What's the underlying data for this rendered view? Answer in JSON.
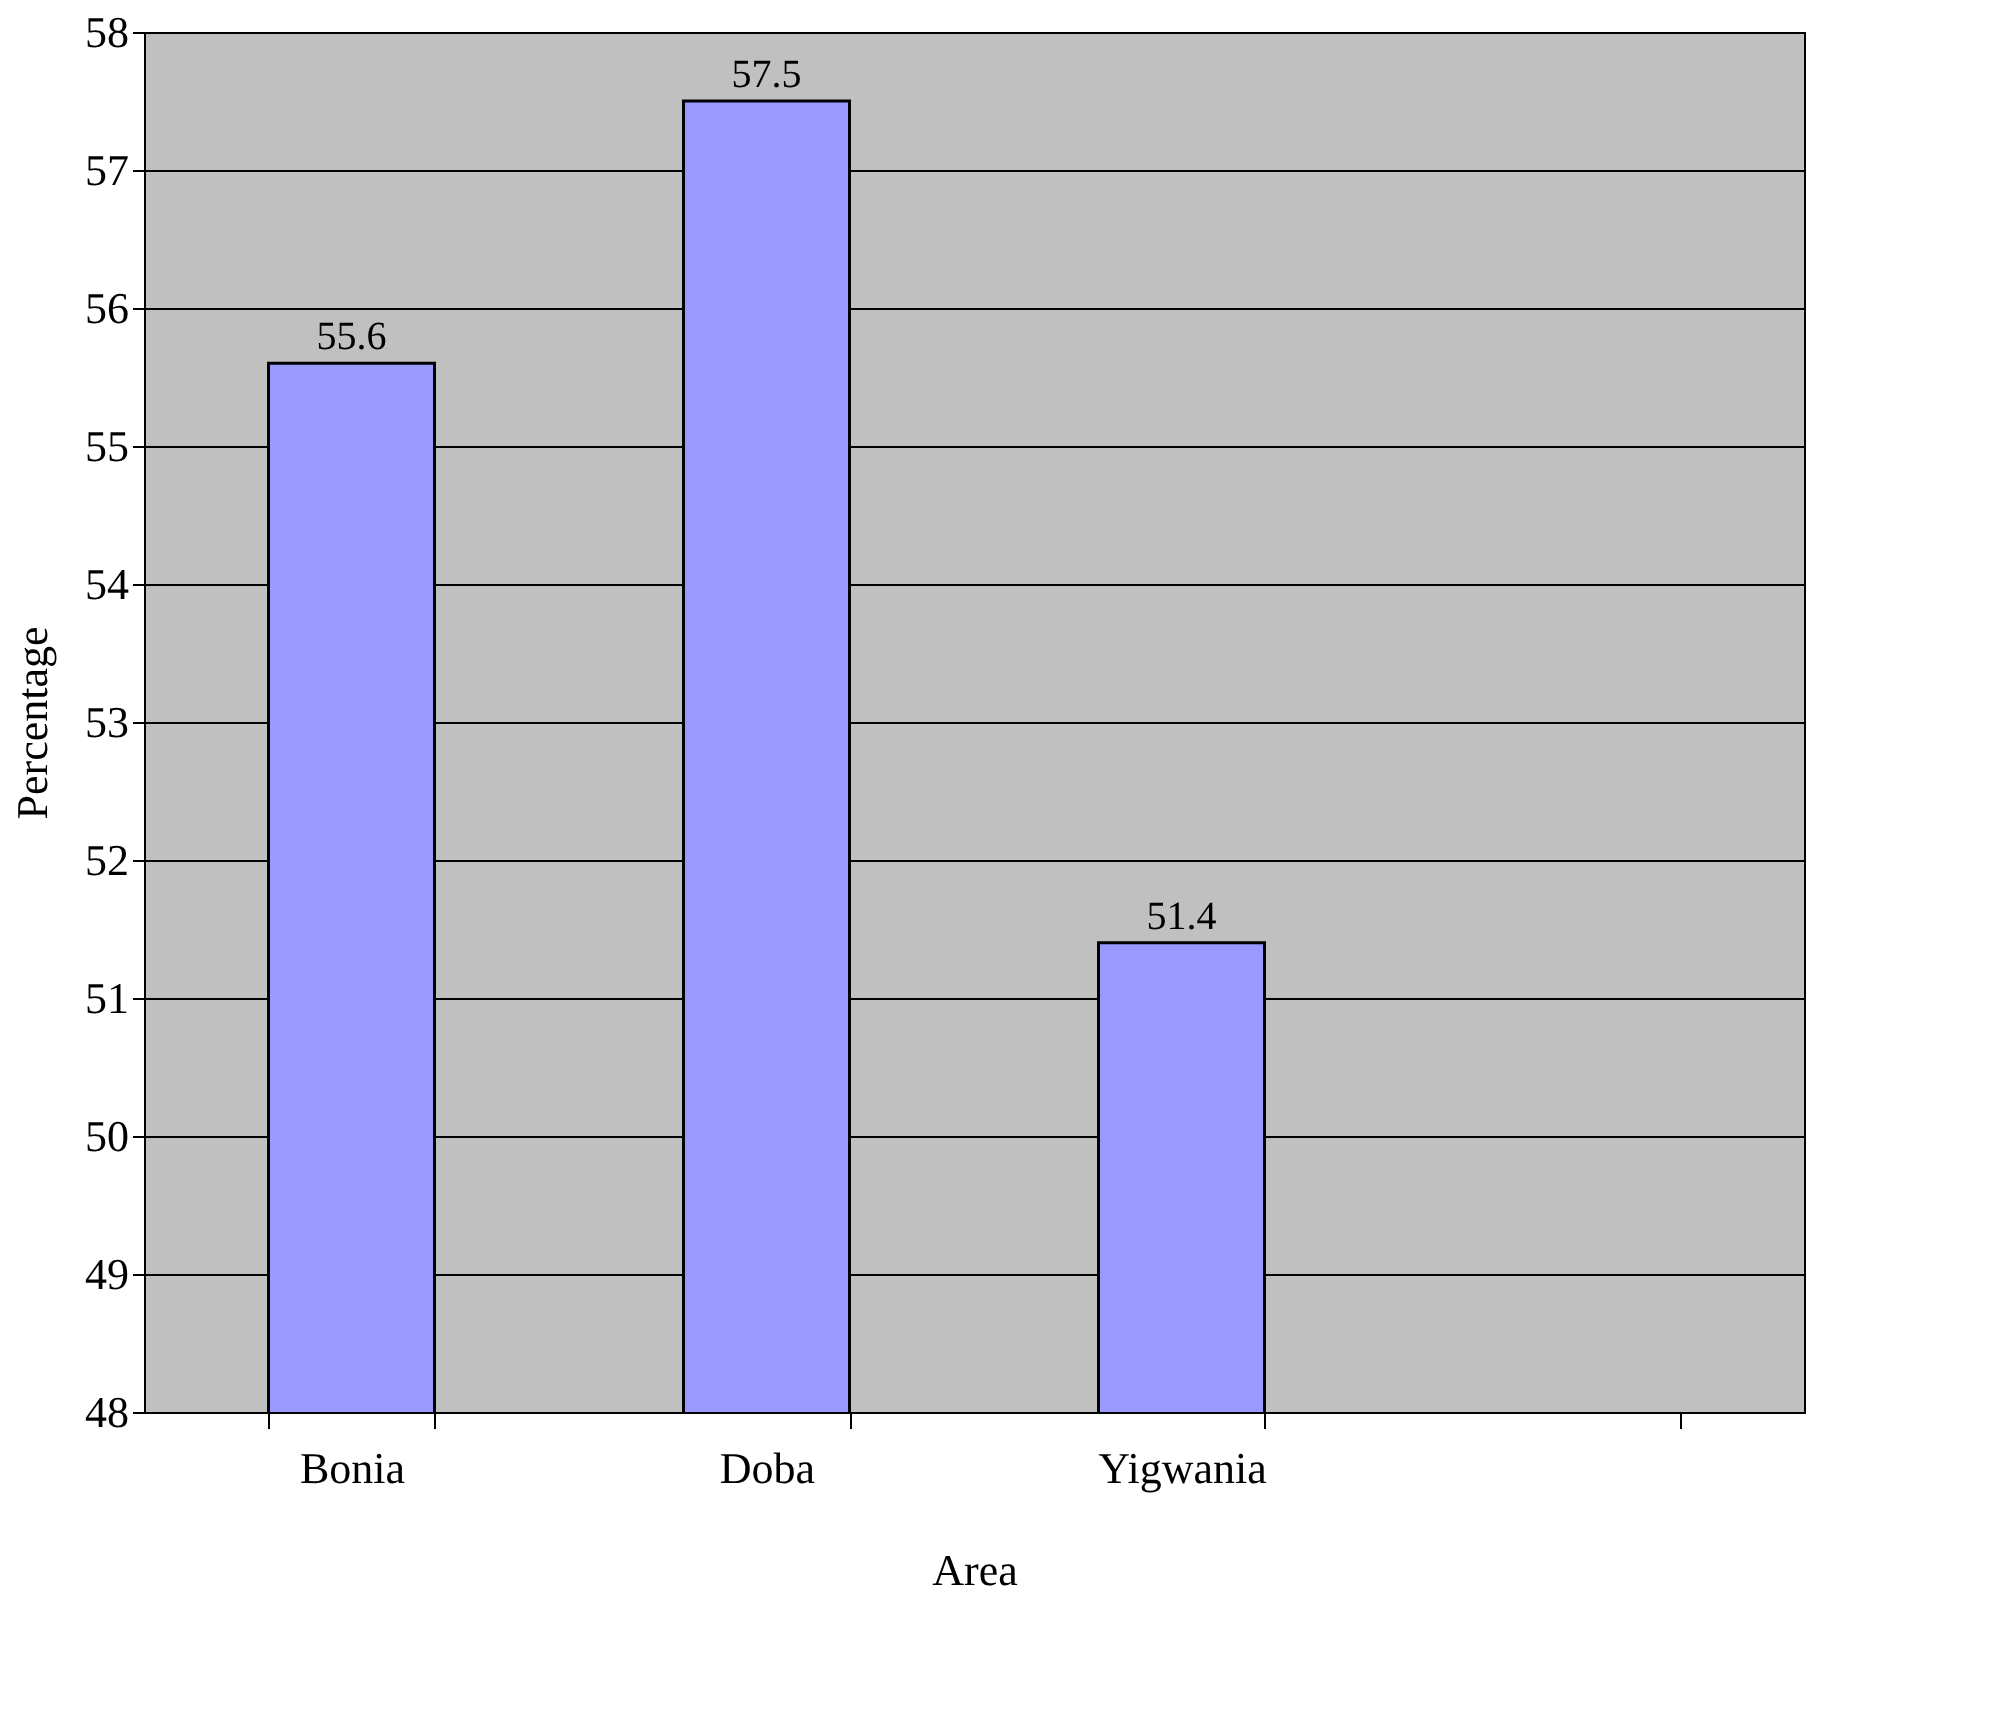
{
  "chart_data": {
    "type": "bar",
    "xlabel": "Area",
    "ylabel": "Percentage",
    "categories": [
      "Bonia",
      "Doba",
      "Yigwania",
      null
    ],
    "series": [
      {
        "color": "#9999ff",
        "values": [
          55.6,
          57.5,
          51.4,
          null
        ]
      }
    ],
    "ylim": [
      48,
      58
    ],
    "yticks": [
      48,
      49,
      50,
      51,
      52,
      53,
      54,
      55,
      56,
      57,
      58
    ],
    "grid": "y",
    "data_labels": true,
    "legend": false
  }
}
